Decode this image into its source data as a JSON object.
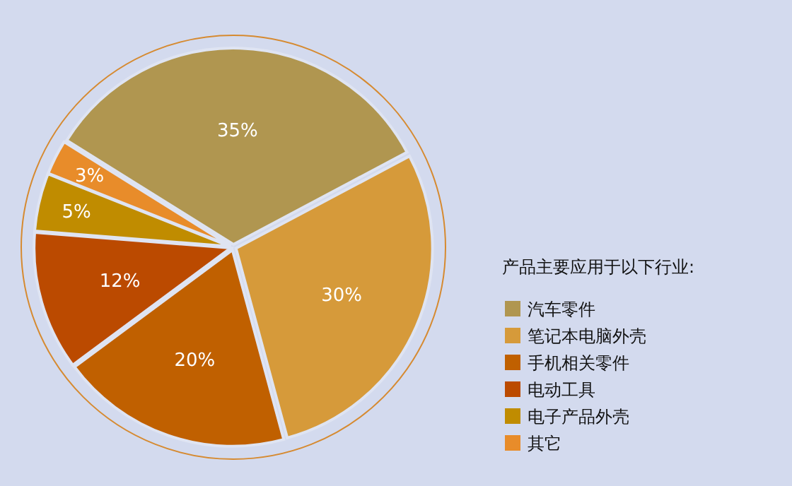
{
  "chart_data": {
    "type": "pie",
    "legend_title": "产品主要应用于以下行业:",
    "legend": "right",
    "categories": [
      "汽车零件",
      "笔记本电脑外壳",
      "手机相关零件",
      "电动工具",
      "电子产品外壳",
      "其它"
    ],
    "values": [
      35,
      30,
      20,
      12,
      5,
      3
    ],
    "value_labels": [
      "35%",
      "30%",
      "20%",
      "12%",
      "5%",
      "3%"
    ],
    "colors": [
      "#b09650",
      "#d69a3a",
      "#c06000",
      "#bb4a00",
      "#c08c00",
      "#e88c2a"
    ]
  }
}
